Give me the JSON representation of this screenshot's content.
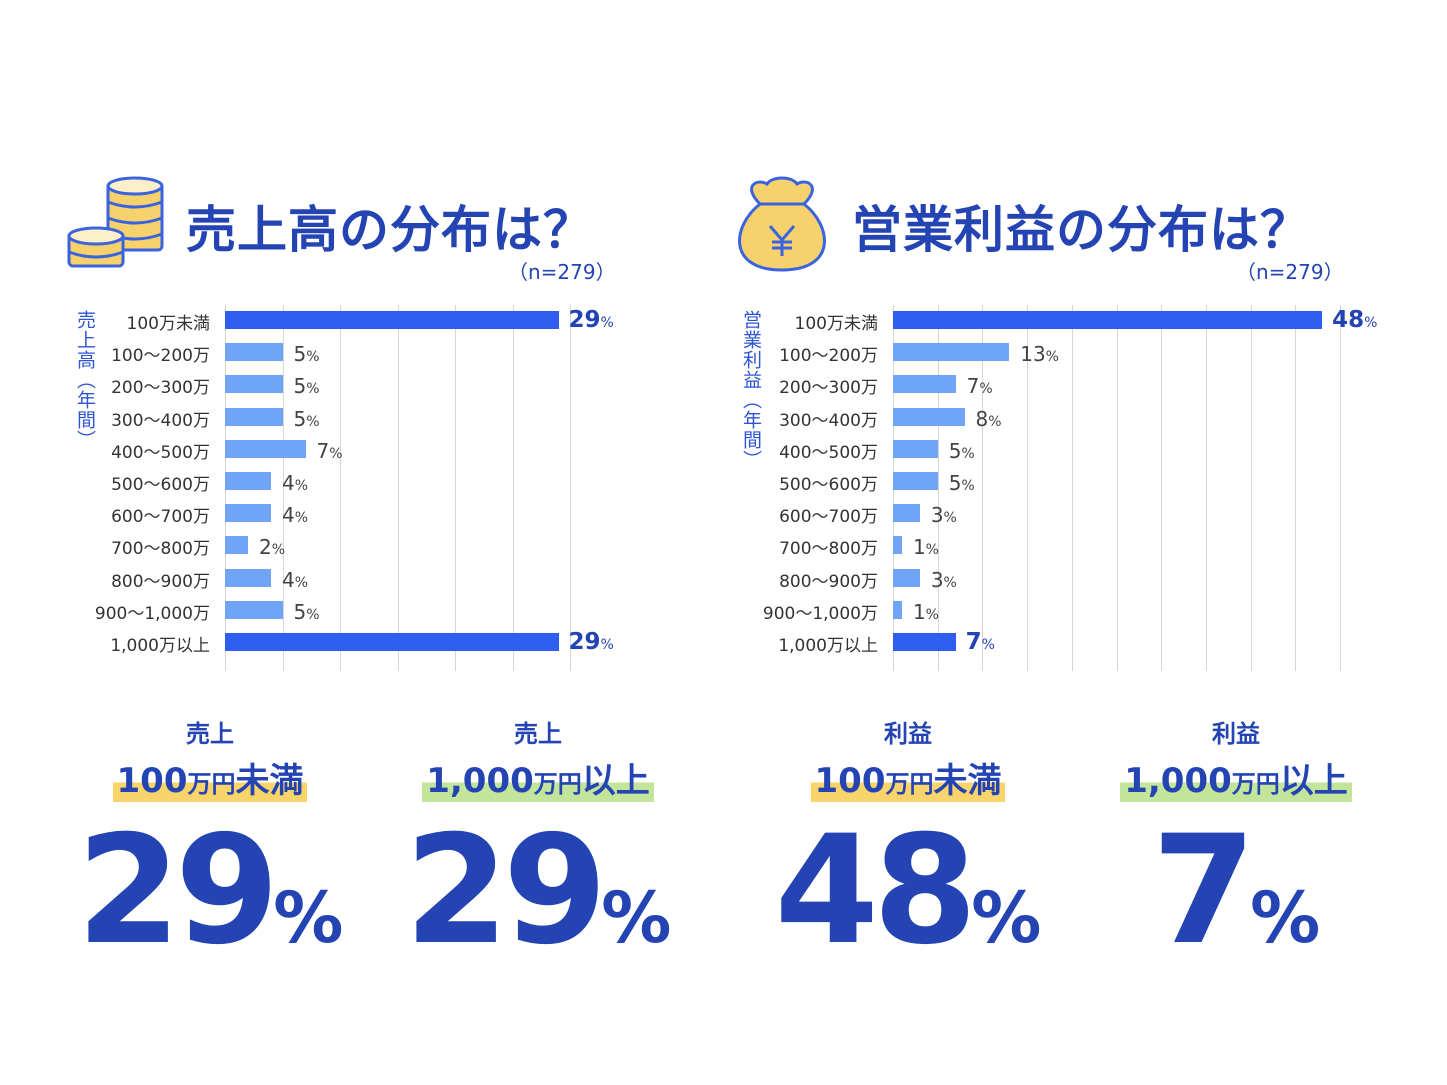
{
  "colors": {
    "main_bar": "#2d5ef0",
    "sub_bar": "#6fa4f6",
    "text": "#2444b3",
    "yellow": "#f8d46a",
    "green": "#c2e59b"
  },
  "chart_data": [
    {
      "type": "bar",
      "orientation": "horizontal",
      "title": "売上高の分布は？",
      "sample": "（n=279）",
      "ylabel": "売上高（年間）",
      "xlim": [
        0,
        30
      ],
      "grid_step": 5,
      "categories": [
        "100万未満",
        "100〜200万",
        "200〜300万",
        "300〜400万",
        "400〜500万",
        "500〜600万",
        "600〜700万",
        "700〜800万",
        "800〜900万",
        "900〜1,000万",
        "1,000万以上"
      ],
      "values": [
        29,
        5,
        5,
        5,
        7,
        4,
        4,
        2,
        4,
        5,
        29
      ],
      "highlight": [
        0,
        10
      ],
      "unit": "%"
    },
    {
      "type": "bar",
      "orientation": "horizontal",
      "title": "営業利益の分布は？",
      "sample": "（n=279）",
      "ylabel": "営業利益（年間）",
      "xlim": [
        0,
        50
      ],
      "grid_step": 5,
      "categories": [
        "100万未満",
        "100〜200万",
        "200〜300万",
        "300〜400万",
        "400〜500万",
        "500〜600万",
        "600〜700万",
        "700〜800万",
        "800〜900万",
        "900〜1,000万",
        "1,000万以上"
      ],
      "values": [
        48,
        13,
        7,
        8,
        5,
        5,
        3,
        1,
        3,
        1,
        7
      ],
      "highlight": [
        0,
        10
      ],
      "unit": "%"
    }
  ],
  "icons": [
    "coins-icon",
    "money-bag-icon"
  ],
  "summary": [
    {
      "l1": "売上",
      "num": "100",
      "unit": "万円",
      "rest": "未満",
      "value": "29",
      "pct": "%",
      "hl": "yellow"
    },
    {
      "l1": "売上",
      "num": "1,000",
      "unit": "万円",
      "rest": "以上",
      "value": "29",
      "pct": "%",
      "hl": "green"
    },
    {
      "l1": "利益",
      "num": "100",
      "unit": "万円",
      "rest": "未満",
      "value": "48",
      "pct": "%",
      "hl": "yellow"
    },
    {
      "l1": "利益",
      "num": "1,000",
      "unit": "万円",
      "rest": "以上",
      "value": "7",
      "pct": "%",
      "hl": "green"
    }
  ]
}
